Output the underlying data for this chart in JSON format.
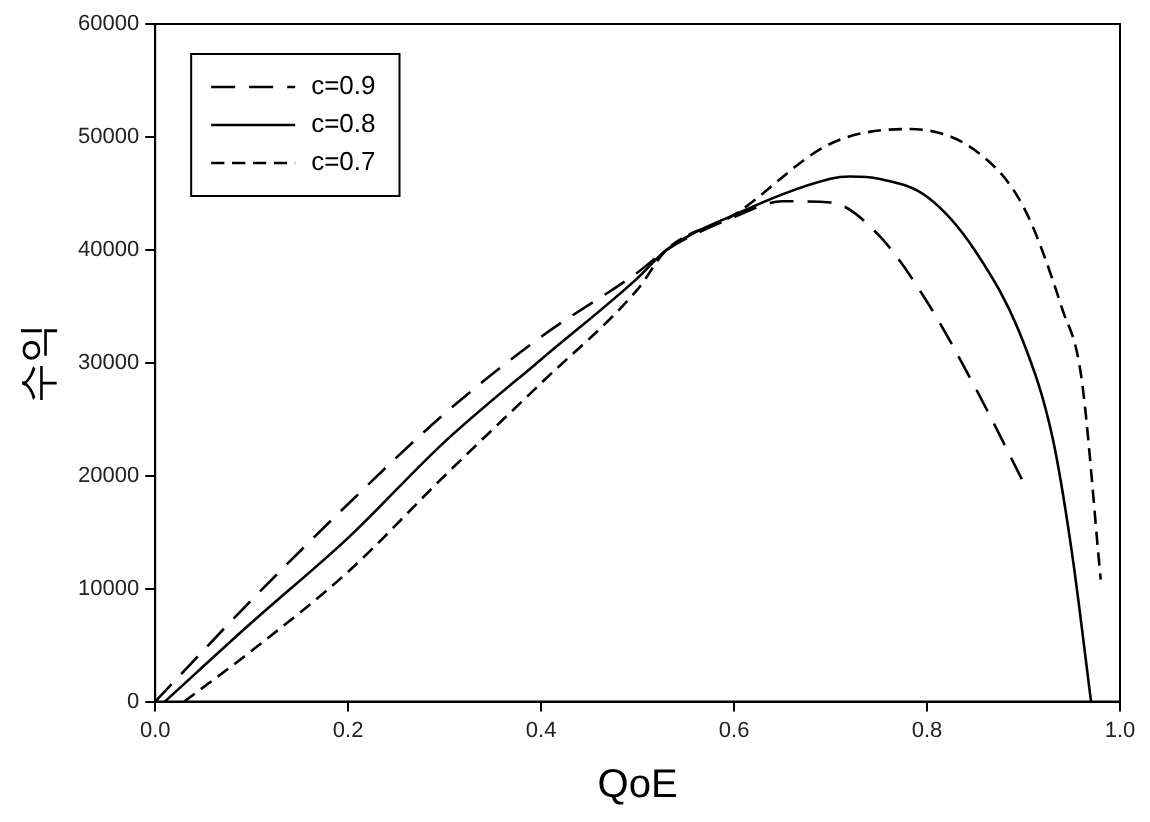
{
  "chart_data": {
    "type": "line",
    "xlabel": "QoE",
    "ylabel": "수익",
    "xlim": [
      0,
      1
    ],
    "xticks": [
      {
        "value": 0,
        "label": "0.0"
      },
      0.2,
      0.4,
      0.6,
      0.8,
      {
        "value": 1,
        "label": "1.0"
      }
    ],
    "ylim": [
      0,
      60000
    ],
    "yticks": [
      0,
      10000,
      20000,
      30000,
      40000,
      50000,
      60000
    ],
    "grid": false,
    "legend": "top left",
    "marker": "none",
    "series": [
      {
        "name": "c=0.9",
        "color": "#000000",
        "line_style": "dashed",
        "x": [
          0,
          0.1,
          0.2,
          0.3,
          0.4,
          0.5,
          0.53,
          0.6,
          0.65,
          0.7,
          0.75,
          0.8,
          0.85,
          0.9
        ],
        "values": [
          0,
          9000,
          17500,
          25500,
          32300,
          38000,
          40000,
          42900,
          44300,
          44200,
          41300,
          35400,
          27800,
          19400
        ]
      },
      {
        "name": "c=0.8",
        "color": "#000000",
        "line_style": "solid",
        "x": [
          0.01,
          0.1,
          0.2,
          0.3,
          0.4,
          0.5,
          0.53,
          0.6,
          0.7,
          0.72,
          0.75,
          0.8,
          0.85,
          0.9,
          0.93,
          0.95,
          0.97
        ],
        "values": [
          0,
          7000,
          14500,
          23000,
          30300,
          37500,
          40000,
          43100,
          46300,
          46500,
          46300,
          44700,
          39900,
          31800,
          23400,
          13300,
          0
        ]
      },
      {
        "name": "c=0.7",
        "color": "#000000",
        "line_style": "dashed",
        "x": [
          0.03,
          0.1,
          0.2,
          0.3,
          0.4,
          0.5,
          0.53,
          0.6,
          0.7,
          0.78,
          0.85,
          0.9,
          0.94,
          0.96,
          0.98
        ],
        "values": [
          0,
          4500,
          11500,
          20000,
          28200,
          36500,
          40000,
          43100,
          49400,
          50700,
          48800,
          43800,
          34800,
          28700,
          10800
        ]
      }
    ]
  }
}
